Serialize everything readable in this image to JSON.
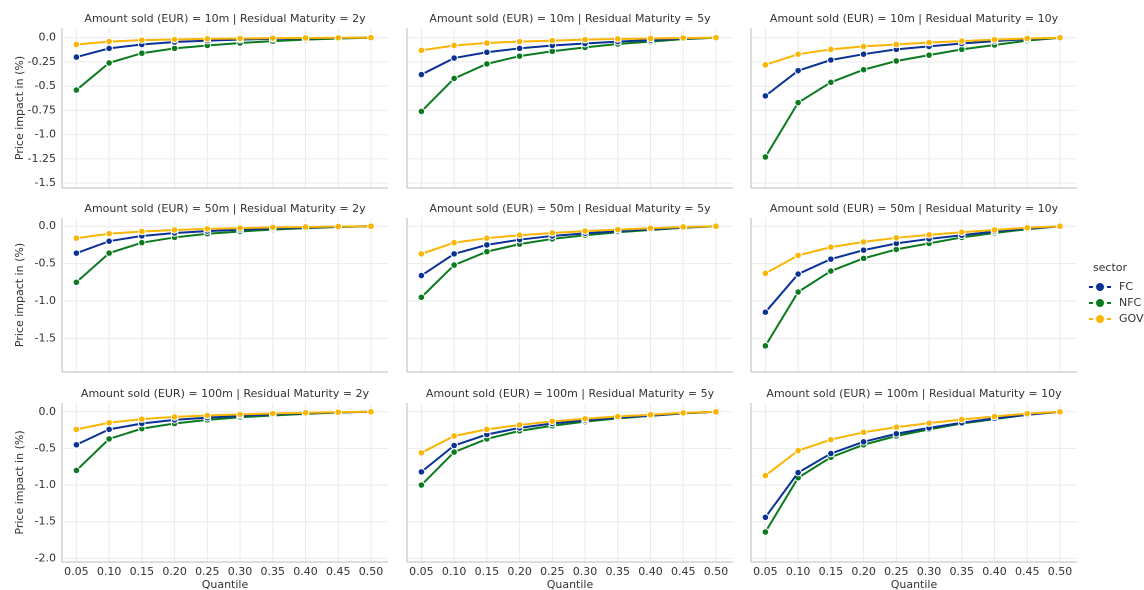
{
  "chart_data": [
    {
      "type": "line",
      "title": "Amount sold (EUR) = 10m | Residual Maturity = 2y",
      "ylabel": "Price impact in (%)",
      "legend_title": "sector",
      "grid": true,
      "x": [
        0.05,
        0.1,
        0.15,
        0.2,
        0.25,
        0.3,
        0.35,
        0.4,
        0.45,
        0.5
      ],
      "xlim": [
        0.028,
        0.526
      ],
      "ylim": [
        -1.55,
        0.1
      ],
      "yticks": [
        {
          "value": 0,
          "label": "0.0"
        },
        -0.25,
        -0.5,
        -0.75,
        {
          "value": -1,
          "label": "-1.0"
        },
        -1.25,
        -1.5
      ],
      "series": [
        {
          "name": "FC",
          "color": "#0a3296",
          "values": [
            -0.2,
            -0.11,
            -0.07,
            -0.045,
            -0.03,
            -0.02,
            -0.012,
            -0.007,
            -0.003,
            0
          ]
        },
        {
          "name": "NFC",
          "color": "#0b7a1f",
          "values": [
            -0.54,
            -0.26,
            -0.16,
            -0.11,
            -0.08,
            -0.055,
            -0.035,
            -0.02,
            -0.008,
            0
          ]
        },
        {
          "name": "GOV",
          "color": "#fbb400",
          "values": [
            -0.07,
            -0.04,
            -0.025,
            -0.018,
            -0.012,
            -0.008,
            -0.005,
            -0.003,
            -0.001,
            0
          ]
        }
      ]
    },
    {
      "type": "line",
      "title": "Amount sold (EUR) = 10m | Residual Maturity = 5y",
      "x": [
        0.05,
        0.1,
        0.15,
        0.2,
        0.25,
        0.3,
        0.35,
        0.4,
        0.45,
        0.5
      ],
      "series": [
        {
          "values": [
            -0.38,
            -0.21,
            -0.15,
            -0.11,
            -0.08,
            -0.06,
            -0.04,
            -0.025,
            -0.01,
            0
          ]
        },
        {
          "values": [
            -0.76,
            -0.42,
            -0.27,
            -0.19,
            -0.14,
            -0.1,
            -0.065,
            -0.04,
            -0.015,
            0
          ]
        },
        {
          "values": [
            -0.13,
            -0.08,
            -0.055,
            -0.04,
            -0.03,
            -0.02,
            -0.013,
            -0.008,
            -0.003,
            0
          ]
        }
      ]
    },
    {
      "type": "line",
      "title": "Amount sold (EUR) = 10m | Residual Maturity = 10y",
      "x": [
        0.05,
        0.1,
        0.15,
        0.2,
        0.25,
        0.3,
        0.35,
        0.4,
        0.45,
        0.5
      ],
      "series": [
        {
          "values": [
            -0.6,
            -0.34,
            -0.23,
            -0.17,
            -0.12,
            -0.09,
            -0.06,
            -0.035,
            -0.015,
            0
          ]
        },
        {
          "values": [
            -1.23,
            -0.67,
            -0.46,
            -0.33,
            -0.24,
            -0.18,
            -0.12,
            -0.075,
            -0.03,
            0
          ]
        },
        {
          "values": [
            -0.28,
            -0.17,
            -0.12,
            -0.09,
            -0.07,
            -0.05,
            -0.035,
            -0.02,
            -0.008,
            0
          ]
        }
      ]
    },
    {
      "type": "line",
      "title": "Amount sold (EUR) = 50m | Residual Maturity = 2y",
      "ylabel": "Price impact in (%)",
      "x": [
        0.05,
        0.1,
        0.15,
        0.2,
        0.25,
        0.3,
        0.35,
        0.4,
        0.45,
        0.5
      ],
      "ylim": [
        -1.95,
        0.11
      ],
      "yticks": [
        {
          "value": 0,
          "label": "0.0"
        },
        -0.5,
        {
          "value": -1,
          "label": "-1.0"
        },
        -1.5
      ],
      "series": [
        {
          "values": [
            -0.36,
            -0.2,
            -0.13,
            -0.09,
            -0.065,
            -0.045,
            -0.03,
            -0.018,
            -0.007,
            0
          ]
        },
        {
          "values": [
            -0.75,
            -0.36,
            -0.22,
            -0.15,
            -0.1,
            -0.07,
            -0.045,
            -0.025,
            -0.01,
            0
          ]
        },
        {
          "values": [
            -0.16,
            -0.1,
            -0.07,
            -0.05,
            -0.035,
            -0.025,
            -0.016,
            -0.01,
            -0.004,
            0
          ]
        }
      ]
    },
    {
      "type": "line",
      "title": "Amount sold (EUR) = 50m | Residual Maturity = 5y",
      "x": [
        0.05,
        0.1,
        0.15,
        0.2,
        0.25,
        0.3,
        0.35,
        0.4,
        0.45,
        0.5
      ],
      "series": [
        {
          "values": [
            -0.66,
            -0.37,
            -0.25,
            -0.18,
            -0.13,
            -0.095,
            -0.065,
            -0.04,
            -0.015,
            0
          ]
        },
        {
          "values": [
            -0.95,
            -0.52,
            -0.34,
            -0.24,
            -0.17,
            -0.12,
            -0.08,
            -0.05,
            -0.02,
            0
          ]
        },
        {
          "values": [
            -0.37,
            -0.22,
            -0.16,
            -0.12,
            -0.09,
            -0.065,
            -0.045,
            -0.027,
            -0.01,
            0
          ]
        }
      ]
    },
    {
      "type": "line",
      "title": "Amount sold (EUR) = 50m | Residual Maturity = 10y",
      "x": [
        0.05,
        0.1,
        0.15,
        0.2,
        0.25,
        0.3,
        0.35,
        0.4,
        0.45,
        0.5
      ],
      "series": [
        {
          "values": [
            -1.15,
            -0.64,
            -0.44,
            -0.32,
            -0.23,
            -0.17,
            -0.12,
            -0.07,
            -0.03,
            0
          ]
        },
        {
          "values": [
            -1.6,
            -0.88,
            -0.6,
            -0.43,
            -0.31,
            -0.23,
            -0.15,
            -0.09,
            -0.04,
            0
          ]
        },
        {
          "values": [
            -0.63,
            -0.39,
            -0.28,
            -0.21,
            -0.155,
            -0.115,
            -0.08,
            -0.05,
            -0.02,
            0
          ]
        }
      ]
    },
    {
      "type": "line",
      "title": "Amount sold (EUR) = 100m | Residual Maturity = 2y",
      "ylabel": "Price impact in (%)",
      "xlabel": "Quantile",
      "x": [
        0.05,
        0.1,
        0.15,
        0.2,
        0.25,
        0.3,
        0.35,
        0.4,
        0.45,
        0.5
      ],
      "ylim": [
        -2.05,
        0.12
      ],
      "yticks": [
        {
          "value": 0,
          "label": "0.0"
        },
        -0.5,
        {
          "value": -1,
          "label": "-1.0"
        },
        -1.5,
        {
          "value": -2,
          "label": "-2.0"
        }
      ],
      "xticks": [
        0.05,
        {
          "value": 0.1,
          "label": "0.10"
        },
        0.15,
        {
          "value": 0.2,
          "label": "0.20"
        },
        0.25,
        {
          "value": 0.3,
          "label": "0.30"
        },
        0.35,
        {
          "value": 0.4,
          "label": "0.40"
        },
        0.45,
        {
          "value": 0.5,
          "label": "0.50"
        }
      ],
      "series": [
        {
          "values": [
            -0.45,
            -0.24,
            -0.16,
            -0.11,
            -0.08,
            -0.055,
            -0.035,
            -0.02,
            -0.008,
            0
          ]
        },
        {
          "values": [
            -0.8,
            -0.37,
            -0.23,
            -0.16,
            -0.11,
            -0.075,
            -0.05,
            -0.028,
            -0.01,
            0
          ]
        },
        {
          "values": [
            -0.24,
            -0.15,
            -0.1,
            -0.07,
            -0.05,
            -0.036,
            -0.024,
            -0.014,
            -0.005,
            0
          ]
        }
      ]
    },
    {
      "type": "line",
      "title": "Amount sold (EUR) = 100m | Residual Maturity = 5y",
      "xlabel": "Quantile",
      "x": [
        0.05,
        0.1,
        0.15,
        0.2,
        0.25,
        0.3,
        0.35,
        0.4,
        0.45,
        0.5
      ],
      "xticks": [
        0.05,
        {
          "value": 0.1,
          "label": "0.10"
        },
        0.15,
        {
          "value": 0.2,
          "label": "0.20"
        },
        0.25,
        {
          "value": 0.3,
          "label": "0.30"
        },
        0.35,
        {
          "value": 0.4,
          "label": "0.40"
        },
        0.45,
        {
          "value": 0.5,
          "label": "0.50"
        }
      ],
      "series": [
        {
          "values": [
            -0.82,
            -0.46,
            -0.31,
            -0.22,
            -0.16,
            -0.115,
            -0.08,
            -0.05,
            -0.02,
            0
          ]
        },
        {
          "values": [
            -1.0,
            -0.55,
            -0.37,
            -0.26,
            -0.19,
            -0.135,
            -0.09,
            -0.055,
            -0.022,
            0
          ]
        },
        {
          "values": [
            -0.56,
            -0.33,
            -0.24,
            -0.18,
            -0.13,
            -0.095,
            -0.065,
            -0.04,
            -0.015,
            0
          ]
        }
      ]
    },
    {
      "type": "line",
      "title": "Amount sold (EUR) = 100m | Residual Maturity = 10y",
      "xlabel": "Quantile",
      "x": [
        0.05,
        0.1,
        0.15,
        0.2,
        0.25,
        0.3,
        0.35,
        0.4,
        0.45,
        0.5
      ],
      "xticks": [
        0.05,
        {
          "value": 0.1,
          "label": "0.10"
        },
        0.15,
        {
          "value": 0.2,
          "label": "0.20"
        },
        0.25,
        {
          "value": 0.3,
          "label": "0.30"
        },
        0.35,
        {
          "value": 0.4,
          "label": "0.40"
        },
        0.45,
        {
          "value": 0.5,
          "label": "0.50"
        }
      ],
      "series": [
        {
          "values": [
            -1.44,
            -0.83,
            -0.57,
            -0.41,
            -0.3,
            -0.22,
            -0.15,
            -0.09,
            -0.04,
            0
          ]
        },
        {
          "values": [
            -1.64,
            -0.9,
            -0.62,
            -0.45,
            -0.33,
            -0.24,
            -0.16,
            -0.1,
            -0.04,
            0
          ]
        },
        {
          "values": [
            -0.87,
            -0.53,
            -0.38,
            -0.28,
            -0.21,
            -0.155,
            -0.105,
            -0.065,
            -0.025,
            0
          ]
        }
      ]
    }
  ]
}
